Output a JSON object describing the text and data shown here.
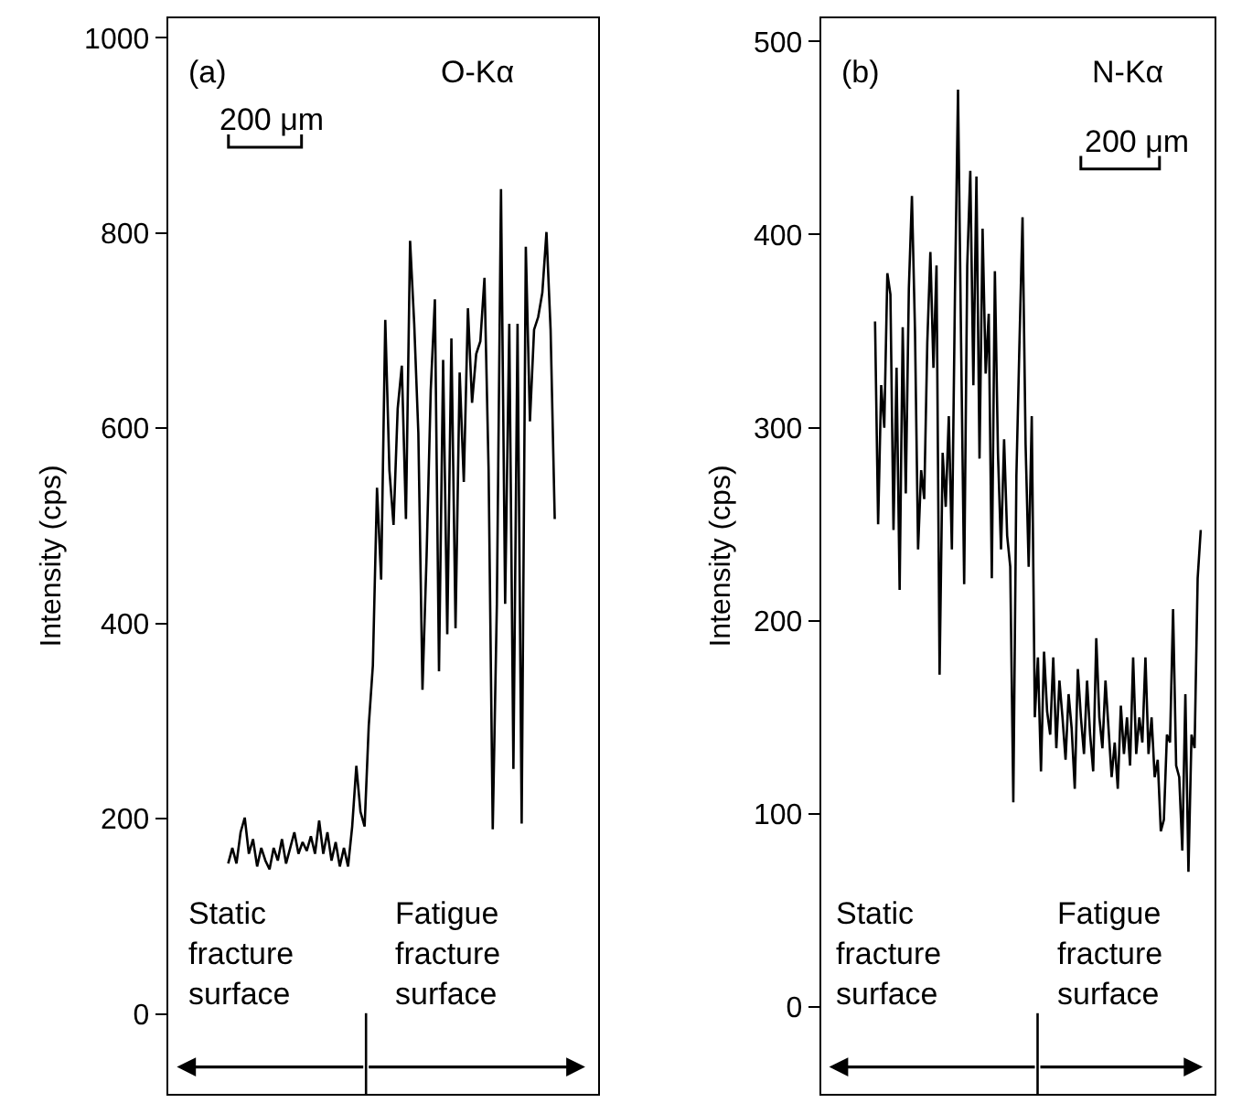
{
  "chart_data": [
    {
      "type": "line",
      "ylabel": "Intensity (cps)",
      "annotations": [
        "(a)",
        "O-Kα",
        "200 μm",
        "Static\nfracture\nsurface",
        "Fatigue\nfracture\nsurface"
      ],
      "categories": [
        null,
        null,
        null,
        null,
        null,
        null,
        null,
        null,
        null,
        null,
        null,
        null,
        null,
        null,
        null,
        null,
        null,
        null,
        null,
        null,
        null,
        null,
        null,
        null,
        null,
        null,
        null,
        null,
        null,
        null,
        null,
        null,
        null,
        null,
        null,
        null,
        null,
        null,
        null,
        null,
        null,
        null,
        null,
        null,
        null,
        null,
        null,
        null,
        null,
        null,
        null,
        null,
        null,
        null,
        null,
        null,
        null,
        null,
        null,
        null,
        null,
        null,
        null,
        null,
        null,
        null,
        null,
        null,
        null,
        null,
        null,
        null,
        null,
        null,
        null,
        null,
        null,
        null,
        null,
        null,
        null,
        null,
        null,
        null,
        null,
        null,
        null,
        null,
        null,
        null,
        null,
        null,
        null,
        null,
        null,
        null,
        null,
        null,
        null,
        null,
        null,
        null,
        null,
        null
      ],
      "series": [
        {
          "color": "#000000",
          "values": [
            null,
            null,
            null,
            null,
            null,
            null,
            null,
            null,
            null,
            null,
            null,
            null,
            null,
            null,
            154,
            170,
            154,
            186,
            201,
            164,
            179,
            151,
            170,
            157,
            148,
            170,
            157,
            179,
            154,
            170,
            186,
            164,
            176,
            167,
            182,
            164,
            198,
            164,
            186,
            157,
            176,
            151,
            170,
            151,
            192,
            254,
            207,
            192,
            295,
            357,
            539,
            445,
            711,
            557,
            501,
            620,
            664,
            507,
            792,
            707,
            595,
            332,
            470,
            639,
            732,
            351,
            670,
            389,
            692,
            395,
            657,
            545,
            723,
            626,
            676,
            689,
            754,
            557,
            189,
            420,
            845,
            420,
            707,
            251,
            707,
            195,
            786,
            607,
            701,
            714,
            739,
            801,
            701,
            507,
            null,
            null,
            null,
            null,
            null,
            null,
            null,
            null,
            null,
            null
          ]
        }
      ],
      "ylim": [
        -82,
        1020
      ],
      "yticks": [
        0,
        200,
        400,
        600,
        800,
        1000
      ],
      "tick_labels": "y",
      "marker": "none",
      "line_style": "solid"
    },
    {
      "type": "line",
      "ylabel": "Intensity (cps)",
      "annotations": [
        "(b)",
        "N-Kα",
        "200 μm",
        "Static\nfracture\nsurface",
        "Fatigue\nfracture\nsurface"
      ],
      "categories": [
        null,
        null,
        null,
        null,
        null,
        null,
        null,
        null,
        null,
        null,
        null,
        null,
        null,
        null,
        null,
        null,
        null,
        null,
        null,
        null,
        null,
        null,
        null,
        null,
        null,
        null,
        null,
        null,
        null,
        null,
        null,
        null,
        null,
        null,
        null,
        null,
        null,
        null,
        null,
        null,
        null,
        null,
        null,
        null,
        null,
        null,
        null,
        null,
        null,
        null,
        null,
        null,
        null,
        null,
        null,
        null,
        null,
        null,
        null,
        null,
        null,
        null,
        null,
        null,
        null,
        null,
        null,
        null,
        null,
        null,
        null,
        null,
        null,
        null,
        null,
        null,
        null,
        null,
        null,
        null,
        null,
        null,
        null,
        null,
        null,
        null,
        null,
        null,
        null,
        null,
        null,
        null,
        null,
        null,
        null,
        null,
        null,
        null,
        null,
        null,
        null,
        null,
        null,
        null,
        null,
        null,
        null,
        null,
        null,
        null,
        null,
        null,
        null,
        null,
        null,
        null,
        null,
        null,
        null,
        null,
        null,
        null,
        null,
        null,
        null,
        null,
        null,
        null
      ],
      "series": [
        {
          "color": "#000000",
          "values": [
            null,
            null,
            null,
            null,
            null,
            null,
            null,
            null,
            null,
            null,
            null,
            null,
            null,
            null,
            null,
            null,
            null,
            355,
            250,
            322,
            300,
            380,
            369,
            247,
            331,
            216,
            352,
            266,
            372,
            420,
            350,
            237,
            278,
            263,
            344,
            391,
            331,
            384,
            172,
            287,
            259,
            306,
            237,
            369,
            475,
            344,
            219,
            384,
            433,
            322,
            430,
            284,
            403,
            328,
            359,
            222,
            381,
            287,
            237,
            294,
            244,
            228,
            106,
            275,
            344,
            409,
            291,
            228,
            306,
            150,
            181,
            122,
            184,
            153,
            141,
            181,
            134,
            169,
            150,
            128,
            162,
            144,
            113,
            175,
            150,
            131,
            169,
            141,
            122,
            191,
            150,
            134,
            169,
            144,
            119,
            137,
            113,
            156,
            131,
            150,
            125,
            181,
            131,
            150,
            137,
            181,
            131,
            150,
            119,
            128,
            91,
            97,
            141,
            137,
            206,
            125,
            119,
            81,
            162,
            70,
            141,
            134,
            222,
            247,
            null,
            null,
            null,
            null
          ]
        }
      ],
      "ylim": [
        -45,
        512
      ],
      "yticks": [
        0,
        100,
        200,
        300,
        400,
        500
      ],
      "tick_labels": "y",
      "marker": "none",
      "line_style": "solid"
    }
  ]
}
